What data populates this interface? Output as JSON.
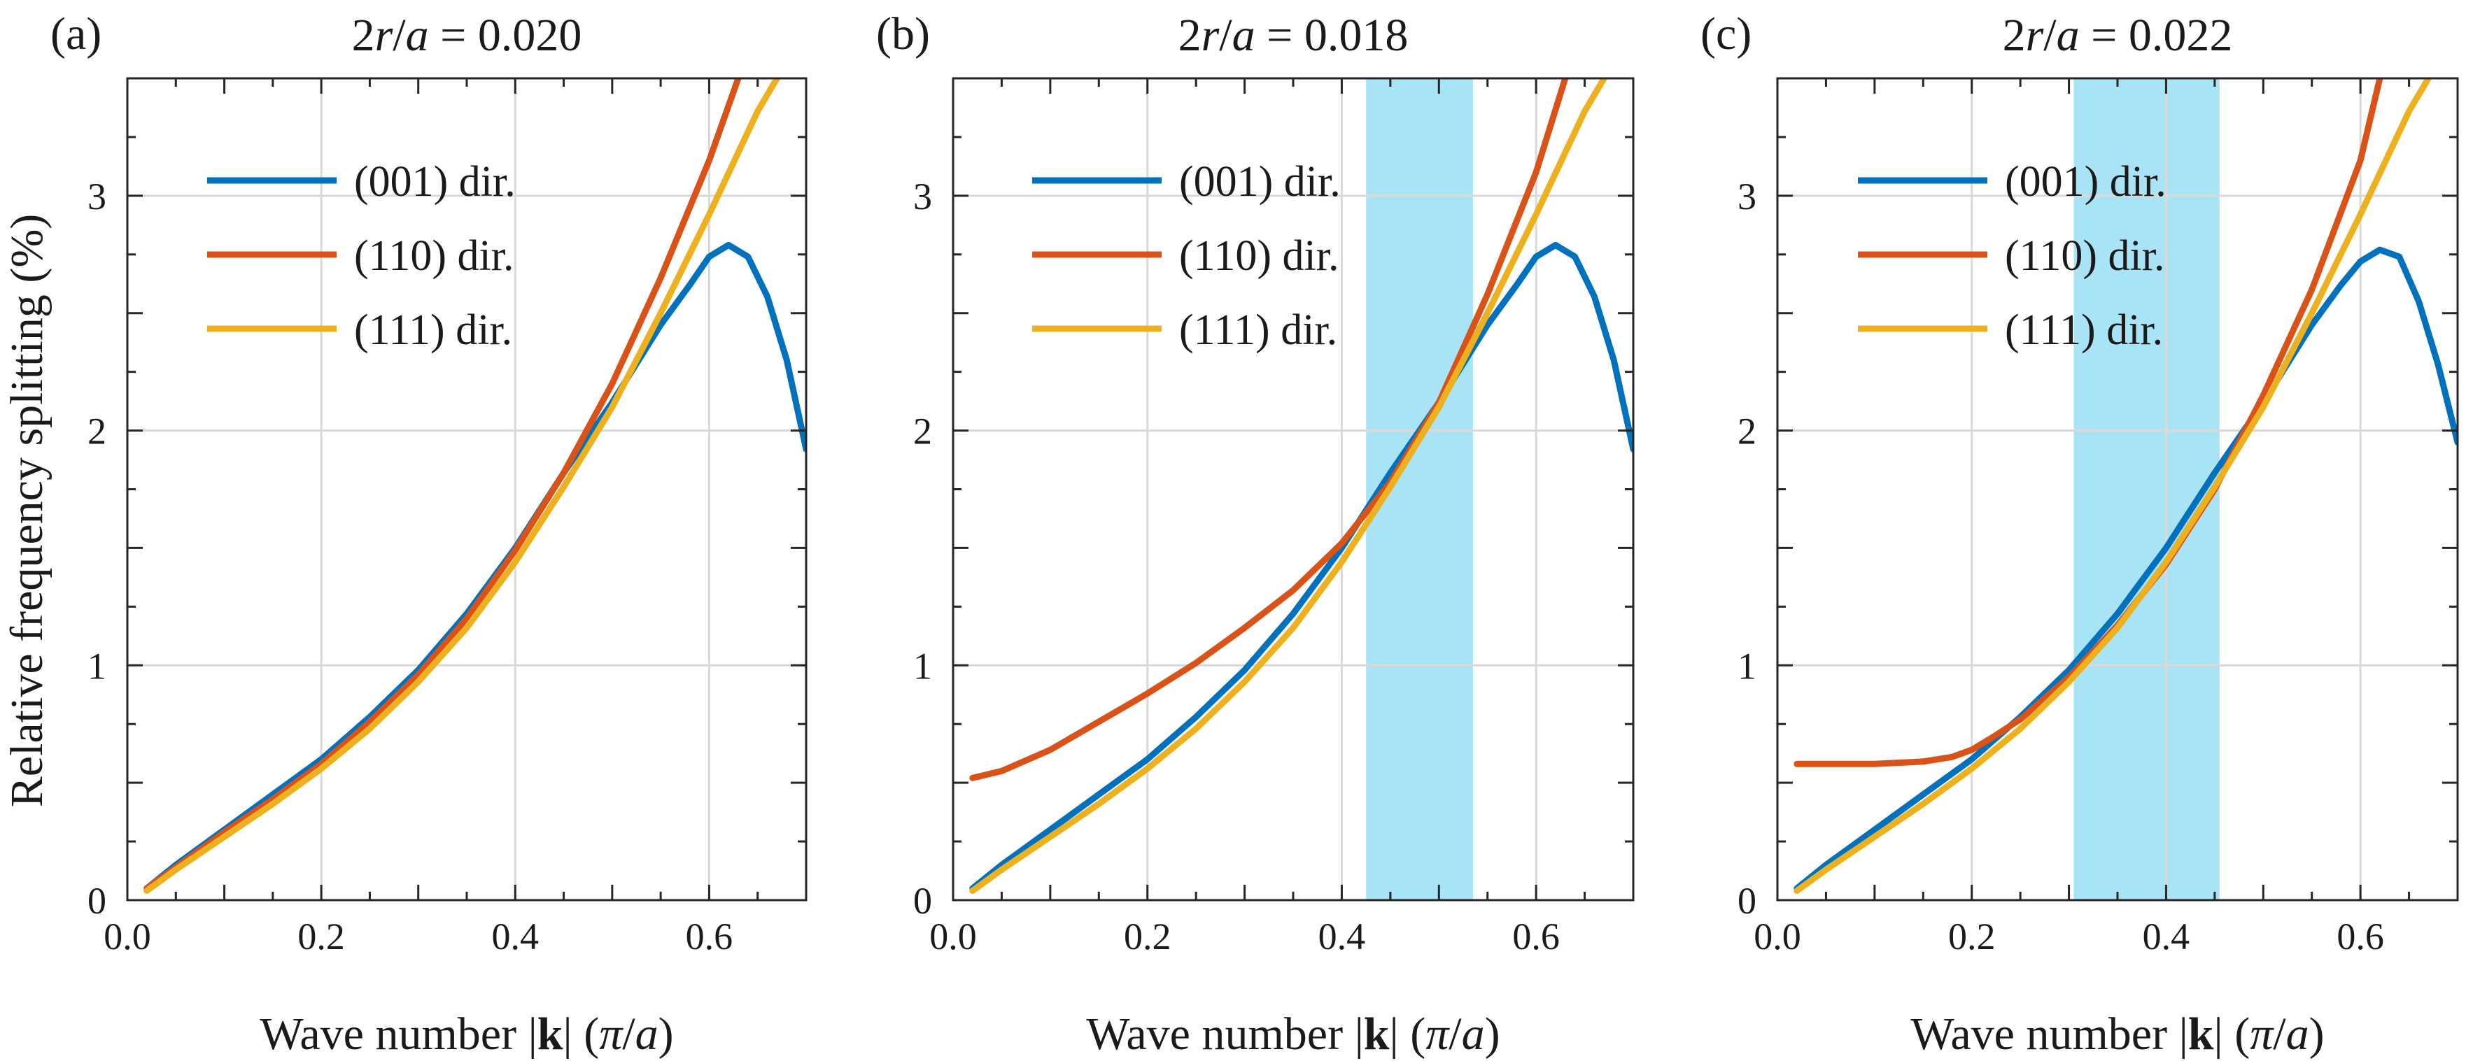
{
  "figure": {
    "ylabel": "Relative frequency splitting (%)",
    "xlabel_prefix": "Wave number |",
    "xlabel_bold": "k",
    "xlabel_mid": "| (",
    "xlabel_pi": "π",
    "xlabel_slash": "/",
    "xlabel_a": "a",
    "xlabel_suffix": ")"
  },
  "colors": {
    "blue": "#0072BD",
    "orange": "#D95319",
    "yellow": "#EDB120",
    "band": "#A8E4F5",
    "grid": "#d9d9d9",
    "axis": "#262626"
  },
  "chart_data": [
    {
      "type": "line",
      "panel_label": "(a)",
      "title_prefix": "2",
      "title_r": "r",
      "title_slash": "/",
      "title_a": "a",
      "title_value": " = 0.020",
      "xlim": [
        0,
        0.7
      ],
      "ylim": [
        0,
        3.5
      ],
      "xticks": [
        0.0,
        0.2,
        0.4,
        0.6
      ],
      "xtick_labels": [
        "0.0",
        "0.2",
        "0.4",
        "0.6"
      ],
      "yticks": [
        0,
        1,
        2,
        3
      ],
      "ytick_labels": [
        "0",
        "1",
        "2",
        "3"
      ],
      "grid": true,
      "legend_position": "top-left",
      "shaded_band": null,
      "series": [
        {
          "name": "(001) dir.",
          "color_key": "blue",
          "x": [
            0.02,
            0.05,
            0.1,
            0.15,
            0.2,
            0.25,
            0.3,
            0.35,
            0.4,
            0.45,
            0.5,
            0.55,
            0.58,
            0.6,
            0.62,
            0.64,
            0.66,
            0.68,
            0.7
          ],
          "y": [
            0.05,
            0.15,
            0.3,
            0.45,
            0.6,
            0.78,
            0.98,
            1.22,
            1.5,
            1.82,
            2.12,
            2.45,
            2.62,
            2.74,
            2.79,
            2.74,
            2.57,
            2.3,
            1.92
          ]
        },
        {
          "name": "(110) dir.",
          "color_key": "orange",
          "x": [
            0.02,
            0.05,
            0.1,
            0.15,
            0.2,
            0.25,
            0.3,
            0.35,
            0.4,
            0.45,
            0.5,
            0.55,
            0.6,
            0.63
          ],
          "y": [
            0.05,
            0.14,
            0.29,
            0.43,
            0.58,
            0.76,
            0.96,
            1.2,
            1.49,
            1.82,
            2.2,
            2.65,
            3.15,
            3.5
          ]
        },
        {
          "name": "(111) dir.",
          "color_key": "yellow",
          "x": [
            0.02,
            0.05,
            0.1,
            0.15,
            0.2,
            0.25,
            0.3,
            0.35,
            0.4,
            0.45,
            0.5,
            0.55,
            0.6,
            0.65,
            0.67
          ],
          "y": [
            0.04,
            0.13,
            0.27,
            0.41,
            0.56,
            0.73,
            0.93,
            1.16,
            1.44,
            1.76,
            2.1,
            2.5,
            2.92,
            3.36,
            3.5
          ]
        }
      ]
    },
    {
      "type": "line",
      "panel_label": "(b)",
      "title_prefix": "2",
      "title_r": "r",
      "title_slash": "/",
      "title_a": "a",
      "title_value": " = 0.018",
      "xlim": [
        0,
        0.7
      ],
      "ylim": [
        0,
        3.5
      ],
      "xticks": [
        0.0,
        0.2,
        0.4,
        0.6
      ],
      "xtick_labels": [
        "0.0",
        "0.2",
        "0.4",
        "0.6"
      ],
      "yticks": [
        0,
        1,
        2,
        3
      ],
      "ytick_labels": [
        "0",
        "1",
        "2",
        "3"
      ],
      "grid": true,
      "legend_position": "top-left",
      "shaded_band": [
        0.425,
        0.535
      ],
      "series": [
        {
          "name": "(001) dir.",
          "color_key": "blue",
          "x": [
            0.02,
            0.05,
            0.1,
            0.15,
            0.2,
            0.25,
            0.3,
            0.35,
            0.4,
            0.45,
            0.5,
            0.55,
            0.58,
            0.6,
            0.62,
            0.64,
            0.66,
            0.68,
            0.7
          ],
          "y": [
            0.05,
            0.15,
            0.3,
            0.45,
            0.6,
            0.78,
            0.98,
            1.22,
            1.5,
            1.82,
            2.12,
            2.45,
            2.62,
            2.74,
            2.79,
            2.74,
            2.57,
            2.3,
            1.92
          ]
        },
        {
          "name": "(110) dir.",
          "color_key": "orange",
          "x": [
            0.02,
            0.05,
            0.1,
            0.15,
            0.2,
            0.25,
            0.3,
            0.35,
            0.4,
            0.45,
            0.5,
            0.55,
            0.6,
            0.63
          ],
          "y": [
            0.52,
            0.55,
            0.64,
            0.76,
            0.88,
            1.01,
            1.16,
            1.32,
            1.52,
            1.78,
            2.12,
            2.58,
            3.1,
            3.5
          ]
        },
        {
          "name": "(111) dir.",
          "color_key": "yellow",
          "x": [
            0.02,
            0.05,
            0.1,
            0.15,
            0.2,
            0.25,
            0.3,
            0.35,
            0.4,
            0.45,
            0.5,
            0.55,
            0.6,
            0.65,
            0.67
          ],
          "y": [
            0.04,
            0.13,
            0.27,
            0.41,
            0.56,
            0.73,
            0.93,
            1.16,
            1.44,
            1.76,
            2.1,
            2.5,
            2.92,
            3.36,
            3.5
          ]
        }
      ]
    },
    {
      "type": "line",
      "panel_label": "(c)",
      "title_prefix": "2",
      "title_r": "r",
      "title_slash": "/",
      "title_a": "a",
      "title_value": " = 0.022",
      "xlim": [
        0,
        0.7
      ],
      "ylim": [
        0,
        3.5
      ],
      "xticks": [
        0.0,
        0.2,
        0.4,
        0.6
      ],
      "xtick_labels": [
        "0.0",
        "0.2",
        "0.4",
        "0.6"
      ],
      "yticks": [
        0,
        1,
        2,
        3
      ],
      "ytick_labels": [
        "0",
        "1",
        "2",
        "3"
      ],
      "grid": true,
      "legend_position": "top-left",
      "shaded_band": [
        0.305,
        0.455
      ],
      "series": [
        {
          "name": "(001) dir.",
          "color_key": "blue",
          "x": [
            0.02,
            0.05,
            0.1,
            0.15,
            0.2,
            0.25,
            0.3,
            0.35,
            0.4,
            0.45,
            0.5,
            0.55,
            0.58,
            0.6,
            0.62,
            0.64,
            0.66,
            0.68,
            0.7
          ],
          "y": [
            0.05,
            0.15,
            0.3,
            0.45,
            0.6,
            0.78,
            0.98,
            1.22,
            1.5,
            1.82,
            2.12,
            2.45,
            2.62,
            2.72,
            2.77,
            2.74,
            2.55,
            2.28,
            1.95
          ]
        },
        {
          "name": "(110) dir.",
          "color_key": "orange",
          "x": [
            0.02,
            0.05,
            0.1,
            0.15,
            0.18,
            0.2,
            0.22,
            0.25,
            0.3,
            0.35,
            0.4,
            0.45,
            0.5,
            0.55,
            0.6,
            0.62
          ],
          "y": [
            0.58,
            0.58,
            0.58,
            0.59,
            0.61,
            0.64,
            0.69,
            0.77,
            0.95,
            1.17,
            1.43,
            1.75,
            2.15,
            2.6,
            3.15,
            3.5
          ]
        },
        {
          "name": "(111) dir.",
          "color_key": "yellow",
          "x": [
            0.02,
            0.05,
            0.1,
            0.15,
            0.2,
            0.25,
            0.3,
            0.35,
            0.4,
            0.45,
            0.5,
            0.55,
            0.6,
            0.65,
            0.67
          ],
          "y": [
            0.04,
            0.13,
            0.27,
            0.41,
            0.56,
            0.73,
            0.93,
            1.16,
            1.44,
            1.76,
            2.1,
            2.5,
            2.92,
            3.36,
            3.5
          ]
        }
      ]
    }
  ]
}
